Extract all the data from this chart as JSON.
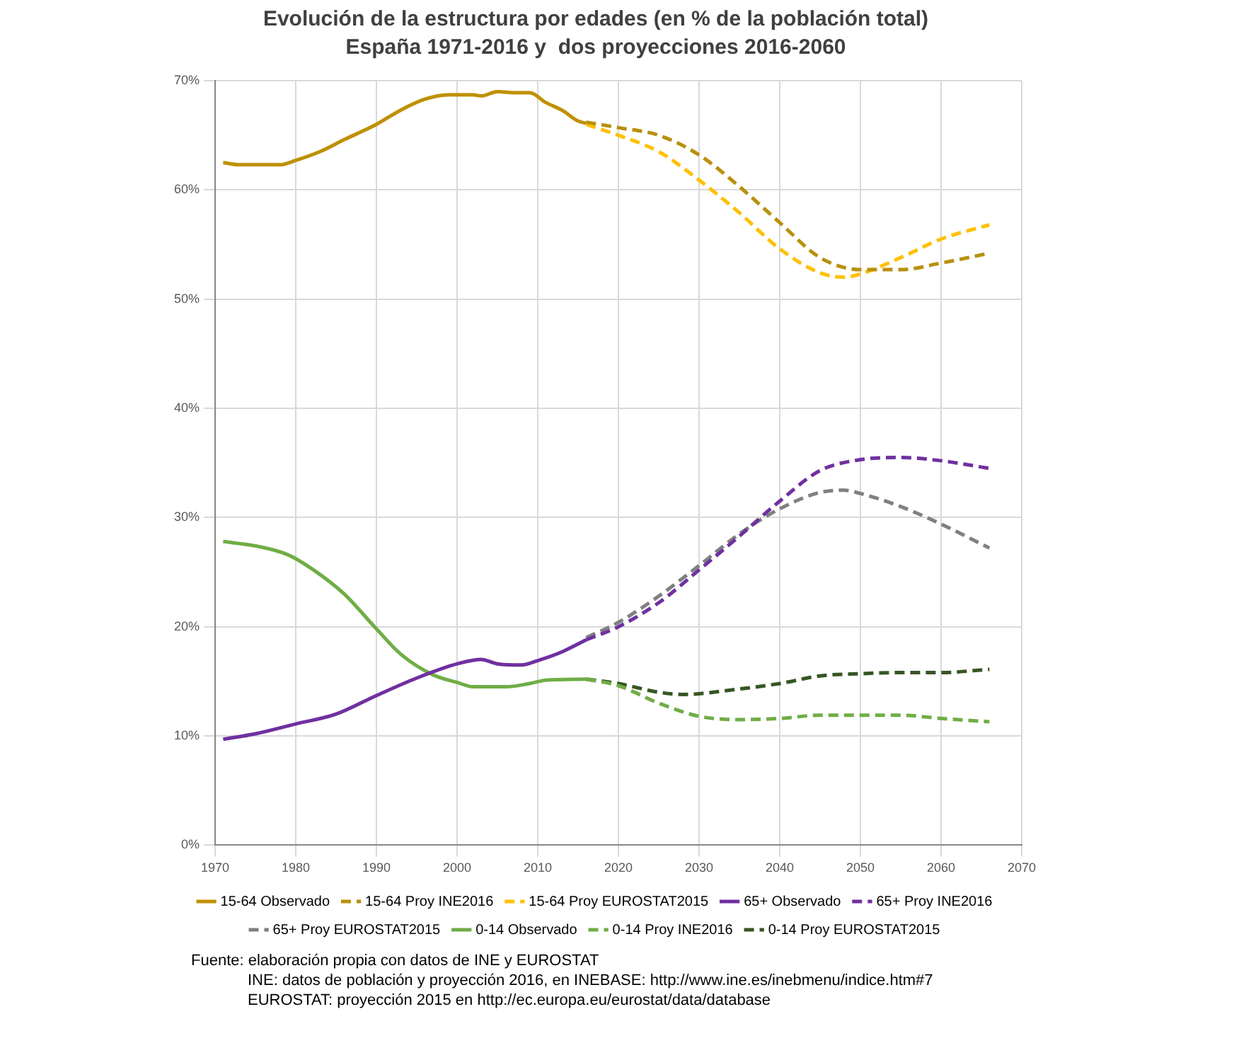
{
  "chart_data": {
    "type": "line",
    "title": "Evolución de la estructura por edades (en % de la población total)",
    "subtitle": "España 1971-2016 y  dos proyecciones 2016-2060",
    "xlim": [
      1970,
      2070
    ],
    "xticks": [
      1970,
      1980,
      1990,
      2000,
      2010,
      2020,
      2030,
      2040,
      2050,
      2060,
      2070
    ],
    "ylim": [
      0,
      70
    ],
    "yticks": [
      {
        "value": 0,
        "label": "0%"
      },
      {
        "value": 10,
        "label": "10%"
      },
      {
        "value": 20,
        "label": "20%"
      },
      {
        "value": 30,
        "label": "30%"
      },
      {
        "value": 40,
        "label": "40%"
      },
      {
        "value": 50,
        "label": "50%"
      },
      {
        "value": 60,
        "label": "60%"
      },
      {
        "value": 70,
        "label": "70%"
      }
    ],
    "grid": true,
    "legend": "bottom",
    "marker": "none",
    "series": [
      {
        "name": "15-64 Observado",
        "color": "#bf9000",
        "line_style": "solid",
        "x": [
          1971,
          1973,
          1975,
          1978,
          1980,
          1983,
          1986,
          1990,
          1993,
          1996,
          1999,
          2002,
          2003,
          2005,
          2007,
          2009,
          2011,
          2013,
          2015,
          2016
        ],
        "values": [
          62.5,
          62.3,
          62.3,
          62.3,
          62.7,
          63.5,
          64.6,
          66.0,
          67.3,
          68.3,
          68.7,
          68.7,
          68.6,
          69.0,
          68.9,
          68.9,
          68.0,
          67.3,
          66.3,
          66.1
        ]
      },
      {
        "name": "15-64 Proy INE2016",
        "color": "#b8900c",
        "line_style": "dashed",
        "x": [
          2016,
          2020,
          2025,
          2030,
          2035,
          2040,
          2045,
          2050,
          2055,
          2060,
          2066
        ],
        "values": [
          66.2,
          65.7,
          65.0,
          63.2,
          60.3,
          57.0,
          53.8,
          52.7,
          52.7,
          53.3,
          54.2
        ]
      },
      {
        "name": "15-64 Proy EUROSTAT2015",
        "color": "#ffc000",
        "line_style": "dashed",
        "x": [
          2016,
          2020,
          2025,
          2030,
          2035,
          2040,
          2045,
          2048,
          2050,
          2055,
          2060,
          2066
        ],
        "values": [
          66.0,
          65.0,
          63.5,
          60.9,
          57.9,
          54.6,
          52.4,
          52.0,
          52.3,
          53.8,
          55.5,
          56.8
        ]
      },
      {
        "name": "65+ Observado",
        "color": "#7030a0",
        "line_style": "solid",
        "x": [
          1971,
          1975,
          1980,
          1985,
          1990,
          1995,
          2000,
          2003,
          2005,
          2008,
          2010,
          2013,
          2016
        ],
        "values": [
          9.7,
          10.2,
          11.1,
          12.0,
          13.7,
          15.3,
          16.6,
          17.0,
          16.6,
          16.5,
          16.9,
          17.7,
          18.8
        ]
      },
      {
        "name": "65+ Proy INE2016",
        "color": "#7030a0",
        "line_style": "dashed",
        "x": [
          2016,
          2020,
          2025,
          2030,
          2035,
          2040,
          2045,
          2050,
          2055,
          2060,
          2066
        ],
        "values": [
          18.8,
          20.0,
          22.2,
          25.2,
          28.3,
          31.5,
          34.3,
          35.3,
          35.5,
          35.2,
          34.5
        ]
      },
      {
        "name": "65+ Proy EUROSTAT2015",
        "color": "#808080",
        "line_style": "dashed",
        "x": [
          2016,
          2020,
          2025,
          2030,
          2035,
          2040,
          2045,
          2048,
          2050,
          2055,
          2060,
          2066
        ],
        "values": [
          19.0,
          20.4,
          22.8,
          25.6,
          28.5,
          30.8,
          32.3,
          32.5,
          32.2,
          31.0,
          29.4,
          27.2
        ]
      },
      {
        "name": "0-14 Observado",
        "color": "#70ad47",
        "line_style": "solid",
        "x": [
          1971,
          1975,
          1979,
          1982,
          1986,
          1990,
          1993,
          1997,
          2000,
          2002,
          2006,
          2009,
          2011,
          2016
        ],
        "values": [
          27.8,
          27.4,
          26.6,
          25.3,
          23.0,
          19.8,
          17.5,
          15.6,
          14.9,
          14.5,
          14.5,
          14.8,
          15.1,
          15.2
        ]
      },
      {
        "name": "0-14 Proy INE2016",
        "color": "#70ad47",
        "line_style": "dashed",
        "x": [
          2016,
          2020,
          2025,
          2030,
          2035,
          2040,
          2045,
          2050,
          2055,
          2060,
          2066
        ],
        "values": [
          15.2,
          14.6,
          13.0,
          11.8,
          11.5,
          11.6,
          11.9,
          11.9,
          11.9,
          11.6,
          11.3
        ]
      },
      {
        "name": "0-14 Proy EUROSTAT2015",
        "color": "#375623",
        "line_style": "dashed",
        "x": [
          2016,
          2020,
          2025,
          2028,
          2035,
          2040,
          2045,
          2050,
          2055,
          2060,
          2066
        ],
        "values": [
          15.2,
          14.8,
          14.0,
          13.8,
          14.3,
          14.8,
          15.5,
          15.7,
          15.8,
          15.8,
          16.1
        ]
      }
    ],
    "annotations": [
      "Fuente: elaboración propia con datos de INE y EUROSTAT",
      "INE: datos de población y proyección 2016, en INEBASE: http://www.ine.es/inebmenu/indice.htm#7",
      "EUROSTAT: proyección 2015 en http://ec.europa.eu/eurostat/data/database"
    ]
  }
}
